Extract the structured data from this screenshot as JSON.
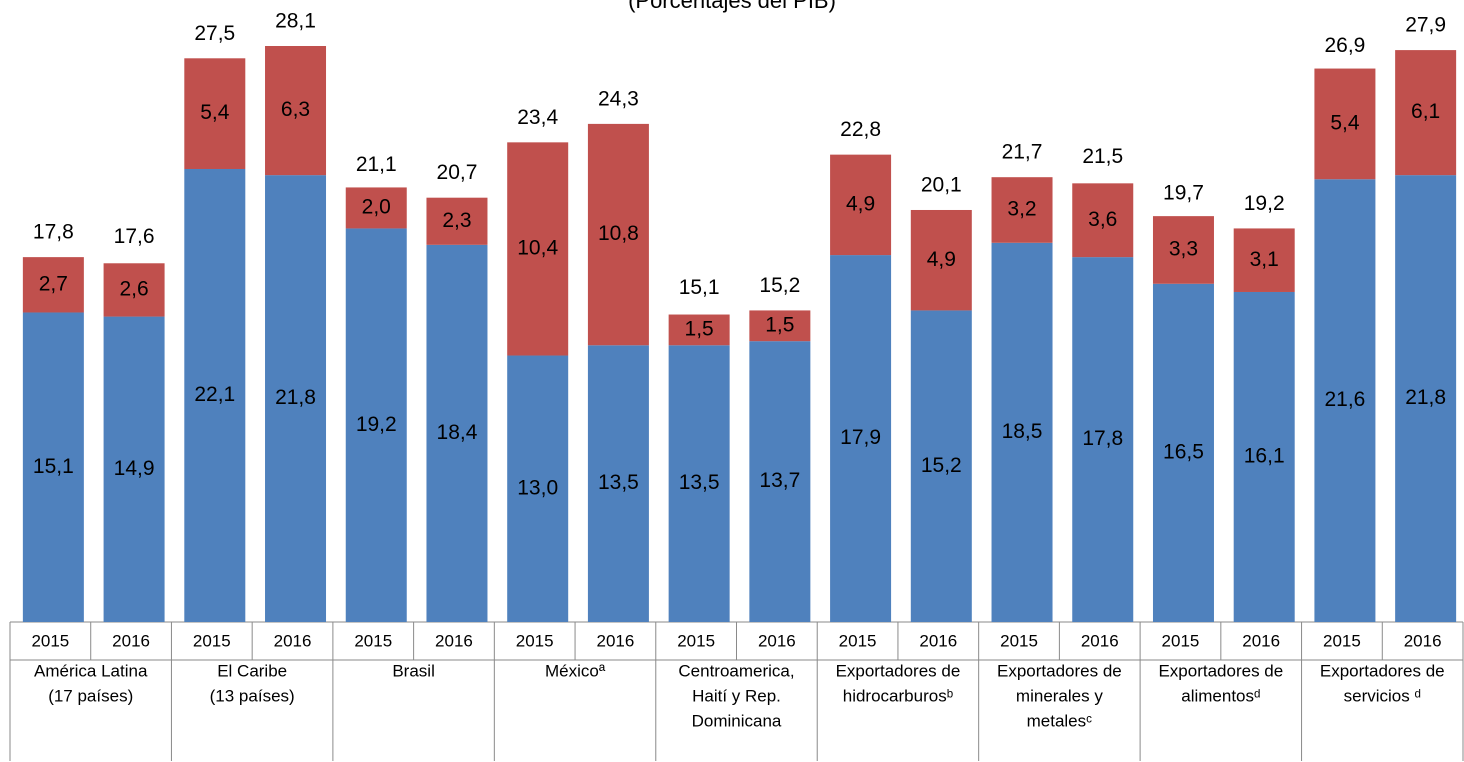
{
  "chart_data": {
    "type": "stacked-bar",
    "subtitle": "(Porcentajes del PIB)",
    "categories": [
      "2015",
      "2016",
      "2015",
      "2016",
      "2015",
      "2016",
      "2015",
      "2016",
      "2015",
      "2016",
      "2015",
      "2016",
      "2015",
      "2016",
      "2015",
      "2016",
      "2015",
      "2016"
    ],
    "groups": [
      {
        "label": [
          "América Latina",
          "(17 países)"
        ]
      },
      {
        "label": [
          "El Caribe",
          "(13 países)"
        ]
      },
      {
        "label": [
          "Brasil"
        ]
      },
      {
        "label": [
          "Méxicoª"
        ]
      },
      {
        "label": [
          "Centroamerica,",
          "Haití y Rep.",
          "Dominicana"
        ]
      },
      {
        "label": [
          "Exportadores de",
          "hidrocarburosᵇ"
        ]
      },
      {
        "label": [
          "Exportadores de",
          "minerales y",
          "metalesᶜ"
        ]
      },
      {
        "label": [
          "Exportadores de",
          "alimentosᵈ"
        ]
      },
      {
        "label": [
          "Exportadores de",
          "servicios ᵈ"
        ]
      }
    ],
    "series": [
      {
        "color": "#4f81bd",
        "values": [
          15.1,
          14.9,
          22.1,
          21.8,
          19.2,
          18.4,
          13.0,
          13.5,
          13.5,
          13.7,
          17.9,
          15.2,
          18.5,
          17.8,
          16.5,
          16.1,
          21.6,
          21.8
        ],
        "value_labels": [
          "15,1",
          "14,9",
          "22,1",
          "21,8",
          "19,2",
          "18,4",
          "13,0",
          "13,5",
          "13,5",
          "13,7",
          "17,9",
          "15,2",
          "18,5",
          "17,8",
          "16,5",
          "16,1",
          "21,6",
          "21,8"
        ]
      },
      {
        "color": "#c0504d",
        "values": [
          2.7,
          2.6,
          5.4,
          6.3,
          2.0,
          2.3,
          10.4,
          10.8,
          1.5,
          1.5,
          4.9,
          4.9,
          3.2,
          3.6,
          3.3,
          3.1,
          5.4,
          6.1
        ],
        "value_labels": [
          "2,7",
          "2,6",
          "5,4",
          "6,3",
          "2,0",
          "2,3",
          "10,4",
          "10,8",
          "1,5",
          "1,5",
          "4,9",
          "4,9",
          "3,2",
          "3,6",
          "3,3",
          "3,1",
          "5,4",
          "6,1"
        ]
      }
    ],
    "totals": [
      17.8,
      17.6,
      27.5,
      28.1,
      21.1,
      20.7,
      23.4,
      24.3,
      15.1,
      15.2,
      22.8,
      20.1,
      21.7,
      21.5,
      19.7,
      19.2,
      26.9,
      27.9
    ],
    "total_labels": [
      "17,8",
      "17,6",
      "27,5",
      "28,1",
      "21,1",
      "20,7",
      "23,4",
      "24,3",
      "15,1",
      "15,2",
      "22,8",
      "20,1",
      "21,7",
      "21,5",
      "19,7",
      "19,2",
      "26,9",
      "27,9"
    ]
  }
}
